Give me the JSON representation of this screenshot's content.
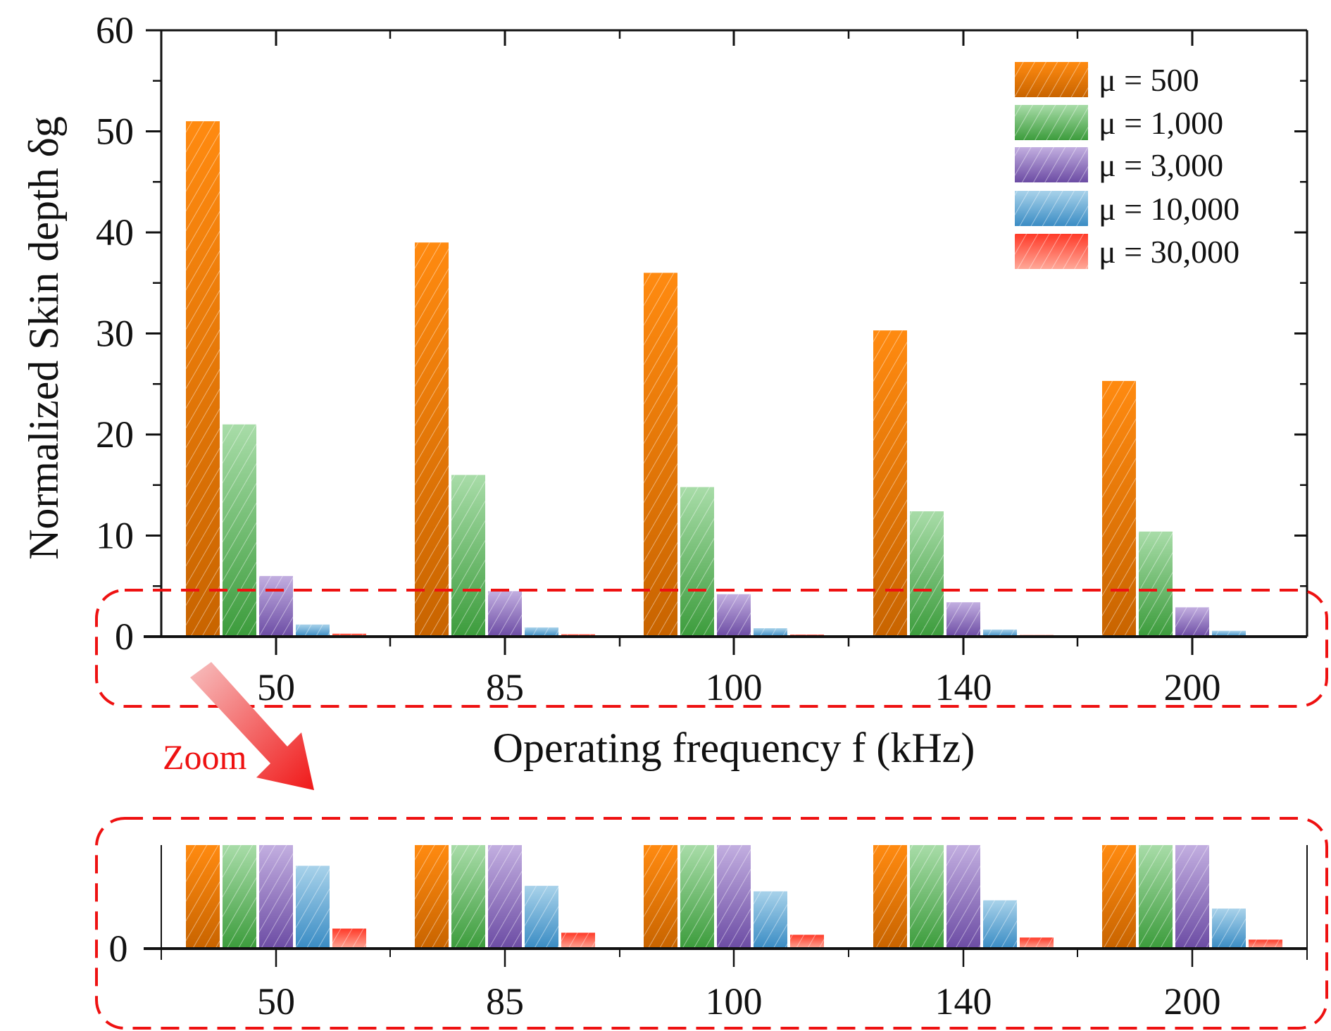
{
  "chart_data": {
    "type": "bar",
    "xlabel": "Operating frequency f (kHz)",
    "ylabel": "Normalized Skin depth δg",
    "categories": [
      "50",
      "85",
      "100",
      "140",
      "200"
    ],
    "ylim": [
      0,
      60
    ],
    "yticks": [
      "0",
      "10",
      "20",
      "30",
      "40",
      "50",
      "60"
    ],
    "legend_position": "top-right",
    "series": [
      {
        "name": "μ = 500",
        "color": "#f07a00",
        "values": [
          51.0,
          39.0,
          36.0,
          30.3,
          25.3
        ]
      },
      {
        "name": "μ = 1,000",
        "color": "#4caa4c",
        "values": [
          21.0,
          16.0,
          14.8,
          12.4,
          10.4
        ]
      },
      {
        "name": "μ = 3,000",
        "color": "#8a68bc",
        "values": [
          6.0,
          4.5,
          4.2,
          3.4,
          2.9
        ]
      },
      {
        "name": "μ = 10,000",
        "color": "#4a9ccc",
        "values": [
          1.2,
          0.91,
          0.83,
          0.7,
          0.58
        ]
      },
      {
        "name": "μ = 30,000",
        "color": "#f23a2a",
        "values": [
          0.29,
          0.23,
          0.2,
          0.16,
          0.13
        ]
      }
    ],
    "inset": {
      "annotation": "Zoom",
      "ytick": "0",
      "ylim": [
        0,
        1.5
      ],
      "categories": [
        "50",
        "85",
        "100",
        "140",
        "200"
      ]
    },
    "annotation_color": "#ee1111"
  }
}
